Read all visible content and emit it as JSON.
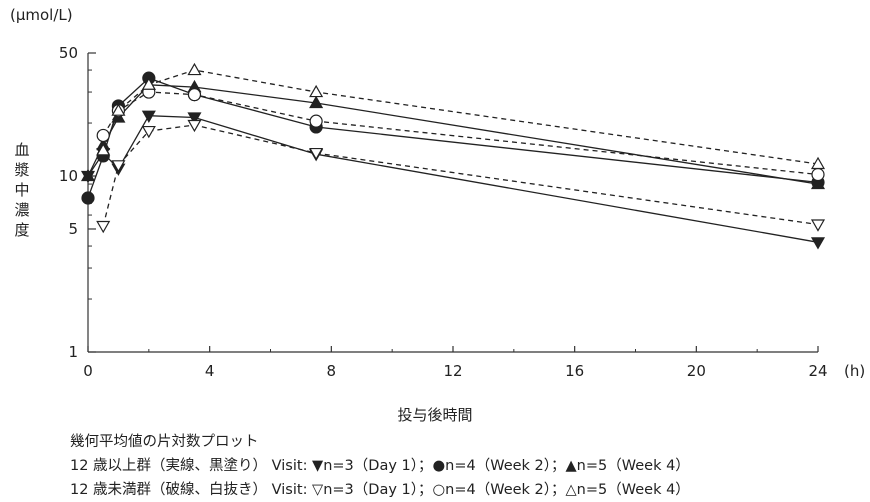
{
  "chart_data": {
    "type": "line",
    "y_unit": "(μmol/L)",
    "ylabel": "血漿中濃度",
    "xlabel": "投与後時間",
    "x_unit": "(h)",
    "yscale": "log",
    "ylim": [
      1,
      50
    ],
    "xlim": [
      0,
      24
    ],
    "y_ticks": [
      "1",
      "5",
      "10",
      "50"
    ],
    "x_ticks": [
      "0",
      "4",
      "8",
      "12",
      "16",
      "20",
      "24"
    ],
    "series": [
      {
        "group": "12歳以上",
        "style": "solid",
        "marker": "filled-tri-down",
        "x": [
          0,
          0.5,
          1,
          2,
          3.5,
          7.5,
          24
        ],
        "y": [
          10,
          13.5,
          11,
          22,
          21.5,
          13.3,
          4.2
        ]
      },
      {
        "group": "12歳以上",
        "style": "solid",
        "marker": "filled-circle",
        "x": [
          0,
          0.5,
          1,
          2,
          3.5,
          7.5,
          24
        ],
        "y": [
          7.5,
          13,
          25,
          36,
          29,
          19,
          9.2
        ]
      },
      {
        "group": "12歳以上",
        "style": "solid",
        "marker": "filled-tri-up",
        "x": [
          0,
          0.5,
          1,
          2,
          3.5,
          7.5,
          24
        ],
        "y": [
          10,
          15,
          21.5,
          33,
          32,
          26,
          9
        ]
      },
      {
        "group": "12歳未満",
        "style": "dashed",
        "marker": "open-tri-down",
        "x": [
          0.5,
          1,
          2,
          3.5,
          7.5,
          24
        ],
        "y": [
          5.2,
          11.5,
          18,
          19.5,
          13.5,
          5.3
        ]
      },
      {
        "group": "12歳未満",
        "style": "dashed",
        "marker": "open-circle",
        "x": [
          0.5,
          1,
          2,
          3.5,
          7.5,
          24
        ],
        "y": [
          17,
          23.5,
          30,
          29,
          20.5,
          10.2
        ]
      },
      {
        "group": "12歳未満",
        "style": "dashed",
        "marker": "open-tri-up",
        "x": [
          0.5,
          1,
          2,
          3.5,
          7.5,
          24
        ],
        "y": [
          14,
          23.5,
          33,
          40,
          30,
          11.7
        ]
      }
    ],
    "notes": [
      "幾何平均値の片対数プロット",
      "12 歳以上群（実線、黒塗り） Visit: ▼n=3（Day 1）；●n=4（Week 2）；▲n=5（Week 4）",
      "12 歳未満群（破線、白抜き） Visit: ▽n=3（Day 1）；○n=4（Week 2）；△n=5（Week 4）"
    ],
    "grid": false,
    "colors": {
      "line": "#222222",
      "axis": "#333333"
    }
  }
}
